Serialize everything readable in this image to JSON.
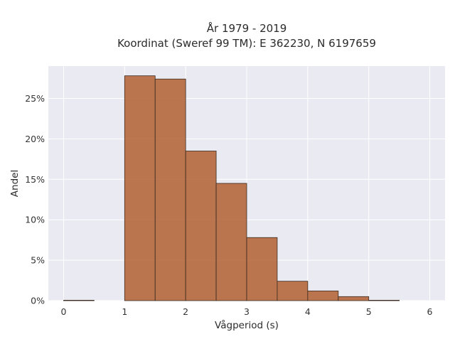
{
  "chart_data": {
    "type": "bar",
    "title": "År 1979 - 2019",
    "subtitle": "Koordinat (Sweref 99 TM): E 362230, N 6197659",
    "xlabel": "Vågperiod (s)",
    "ylabel": "Andel",
    "xlim": [
      -0.25,
      6.25
    ],
    "ylim": [
      0,
      0.29
    ],
    "xticks": [
      0,
      1,
      2,
      3,
      4,
      5,
      6
    ],
    "xtick_labels": [
      "0",
      "1",
      "2",
      "3",
      "4",
      "5",
      "6"
    ],
    "yticks": [
      0,
      0.05,
      0.1,
      0.15,
      0.2,
      0.25
    ],
    "ytick_labels": [
      "0%",
      "5%",
      "10%",
      "15%",
      "20%",
      "25%"
    ],
    "bins": [
      {
        "x0": 0.0,
        "x1": 0.5,
        "value": 0.0005
      },
      {
        "x0": 0.5,
        "x1": 1.0,
        "value": 0.0
      },
      {
        "x0": 1.0,
        "x1": 1.5,
        "value": 0.278
      },
      {
        "x0": 1.5,
        "x1": 2.0,
        "value": 0.274
      },
      {
        "x0": 2.0,
        "x1": 2.5,
        "value": 0.185
      },
      {
        "x0": 2.5,
        "x1": 3.0,
        "value": 0.145
      },
      {
        "x0": 3.0,
        "x1": 3.5,
        "value": 0.078
      },
      {
        "x0": 3.5,
        "x1": 4.0,
        "value": 0.024
      },
      {
        "x0": 4.0,
        "x1": 4.5,
        "value": 0.012
      },
      {
        "x0": 4.5,
        "x1": 5.0,
        "value": 0.005
      },
      {
        "x0": 5.0,
        "x1": 5.5,
        "value": 0.0005
      }
    ],
    "grid": true,
    "legend": "none",
    "colors": {
      "bar_fill": "#b5683d",
      "bar_edge": "#3a2a1e",
      "plot_bg": "#eaeaf2",
      "grid": "#ffffff"
    }
  }
}
